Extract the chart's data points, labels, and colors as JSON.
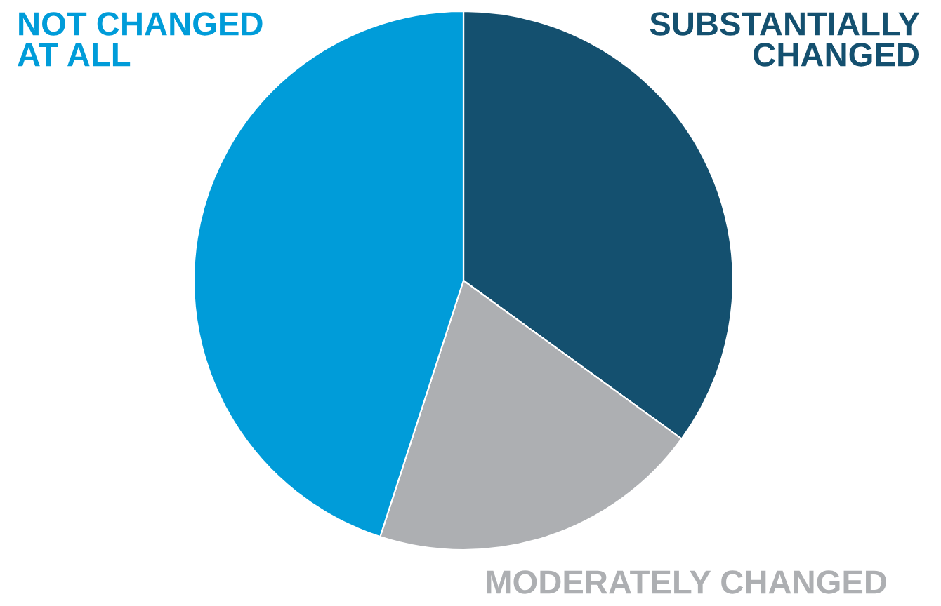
{
  "chart_data": {
    "type": "pie",
    "categories": [
      "SUBSTANTIALLY\nCHANGED",
      "MODERATELY CHANGED",
      "NOT CHANGED\nAT ALL"
    ],
    "values": [
      35,
      20,
      45
    ],
    "colors": [
      "#14506f",
      "#adafb2",
      "#009cd9"
    ]
  }
}
